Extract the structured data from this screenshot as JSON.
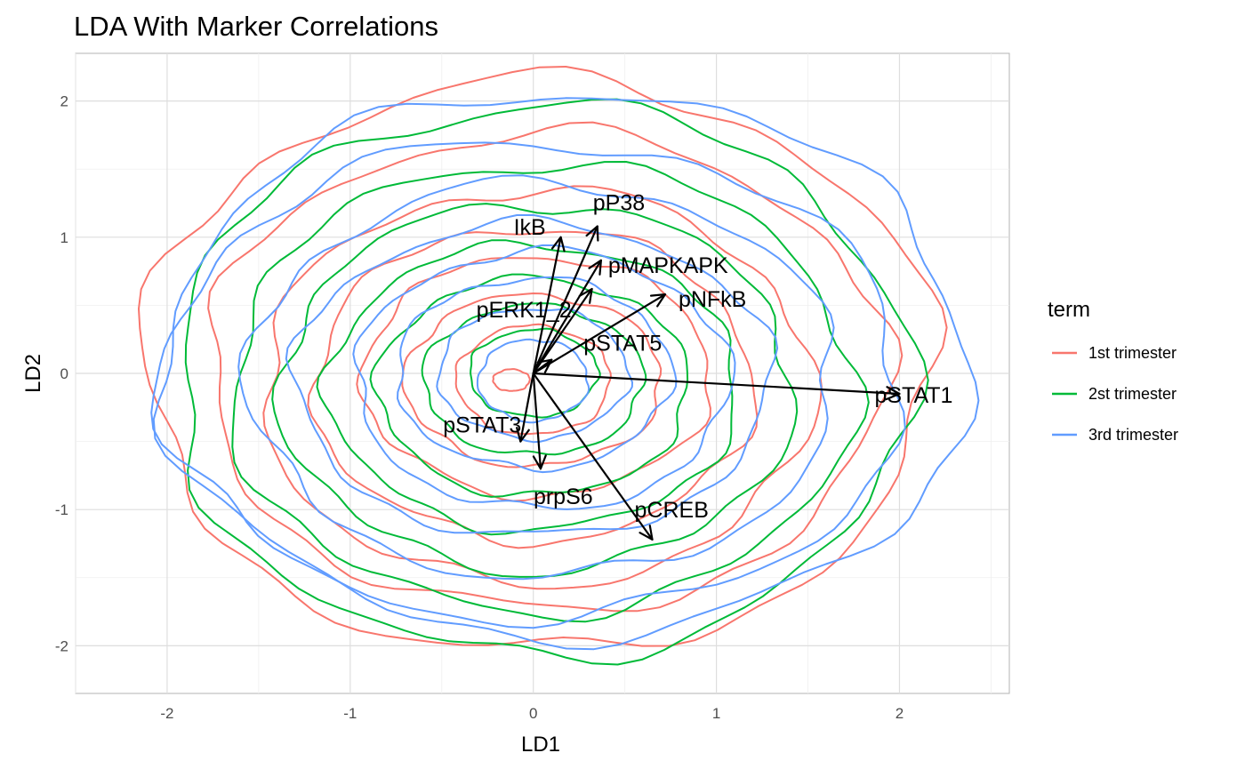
{
  "chart_data": {
    "type": "line",
    "title": "LDA With Marker Correlations",
    "xlabel": "LD1",
    "ylabel": "LD2",
    "xlim": [
      -2.5,
      2.6
    ],
    "ylim": [
      -2.35,
      2.35
    ],
    "x_ticks": [
      -2,
      -1,
      0,
      1,
      2
    ],
    "y_ticks": [
      -2,
      -1,
      0,
      1,
      2
    ],
    "x_tick_labels": [
      "-2",
      "-1",
      "0",
      "1",
      "2"
    ],
    "y_tick_labels": [
      "-2",
      "-1",
      "0",
      "1",
      "2"
    ],
    "grid": true,
    "legend": {
      "title": "term",
      "placement": "right",
      "entries": [
        {
          "name": "1st trimester",
          "color": "#F8766D"
        },
        {
          "name": "2st trimester",
          "color": "#00BA38"
        },
        {
          "name": "3rd trimester",
          "color": "#619CFF"
        }
      ]
    },
    "series": [
      {
        "name": "1st trimester",
        "color": "#F8766D",
        "center": [
          0.0,
          -0.05
        ],
        "contours": [
          [
            2.15,
            2.1,
            0.03,
            0.1
          ],
          [
            1.85,
            1.75,
            0.07,
            0.06
          ],
          [
            1.5,
            1.45,
            0.02,
            -0.05
          ],
          [
            1.2,
            1.15,
            0.0,
            -0.03
          ],
          [
            0.95,
            0.88,
            0.02,
            0.03
          ],
          [
            0.7,
            0.63,
            0.0,
            0.0
          ],
          [
            0.42,
            0.4,
            0.0,
            0.0
          ],
          [
            0.1,
            0.08,
            -0.12,
            0.0
          ]
        ]
      },
      {
        "name": "2st trimester",
        "color": "#00BA38",
        "center": [
          0.0,
          -0.1
        ],
        "contours": [
          [
            2.0,
            2.02,
            0.05,
            0.05
          ],
          [
            1.7,
            1.65,
            0.05,
            0.0
          ],
          [
            1.4,
            1.35,
            0.02,
            0.0
          ],
          [
            1.12,
            1.05,
            0.0,
            0.0
          ],
          [
            0.85,
            0.8,
            0.0,
            0.0
          ],
          [
            0.6,
            0.55,
            0.0,
            0.05
          ],
          [
            0.35,
            0.32,
            0.0,
            0.1
          ]
        ]
      },
      {
        "name": "3rd trimester",
        "color": "#619CFF",
        "center": [
          0.0,
          -0.05
        ],
        "contours": [
          [
            2.2,
            2.0,
            0.18,
            0.12
          ],
          [
            2.02,
            1.75,
            0.0,
            0.0
          ],
          [
            1.6,
            1.45,
            0.05,
            0.0
          ],
          [
            1.3,
            1.15,
            0.0,
            0.0
          ],
          [
            1.02,
            0.95,
            0.05,
            0.0
          ],
          [
            0.75,
            0.7,
            0.0,
            0.05
          ],
          [
            0.52,
            0.48,
            0.0,
            0.05
          ],
          [
            0.3,
            0.3,
            0.0,
            0.0
          ]
        ]
      }
    ],
    "vectors": [
      {
        "label": "pSTAT1",
        "x": 2.0,
        "y": -0.15
      },
      {
        "label": "pCREB",
        "x": 0.65,
        "y": -1.22
      },
      {
        "label": "prpS6",
        "x": 0.04,
        "y": -0.7
      },
      {
        "label": "pSTAT3",
        "x": -0.07,
        "y": -0.5
      },
      {
        "label": "pSTAT5",
        "x": 0.1,
        "y": 0.1
      },
      {
        "label": "pNFkB",
        "x": 0.72,
        "y": 0.58
      },
      {
        "label": "pMAPKAPK",
        "x": 0.37,
        "y": 0.83
      },
      {
        "label": "pERK1_2",
        "x": 0.32,
        "y": 0.62
      },
      {
        "label": "IkB",
        "x": 0.15,
        "y": 1.0
      },
      {
        "label": "pP38",
        "x": 0.35,
        "y": 1.08
      }
    ]
  }
}
